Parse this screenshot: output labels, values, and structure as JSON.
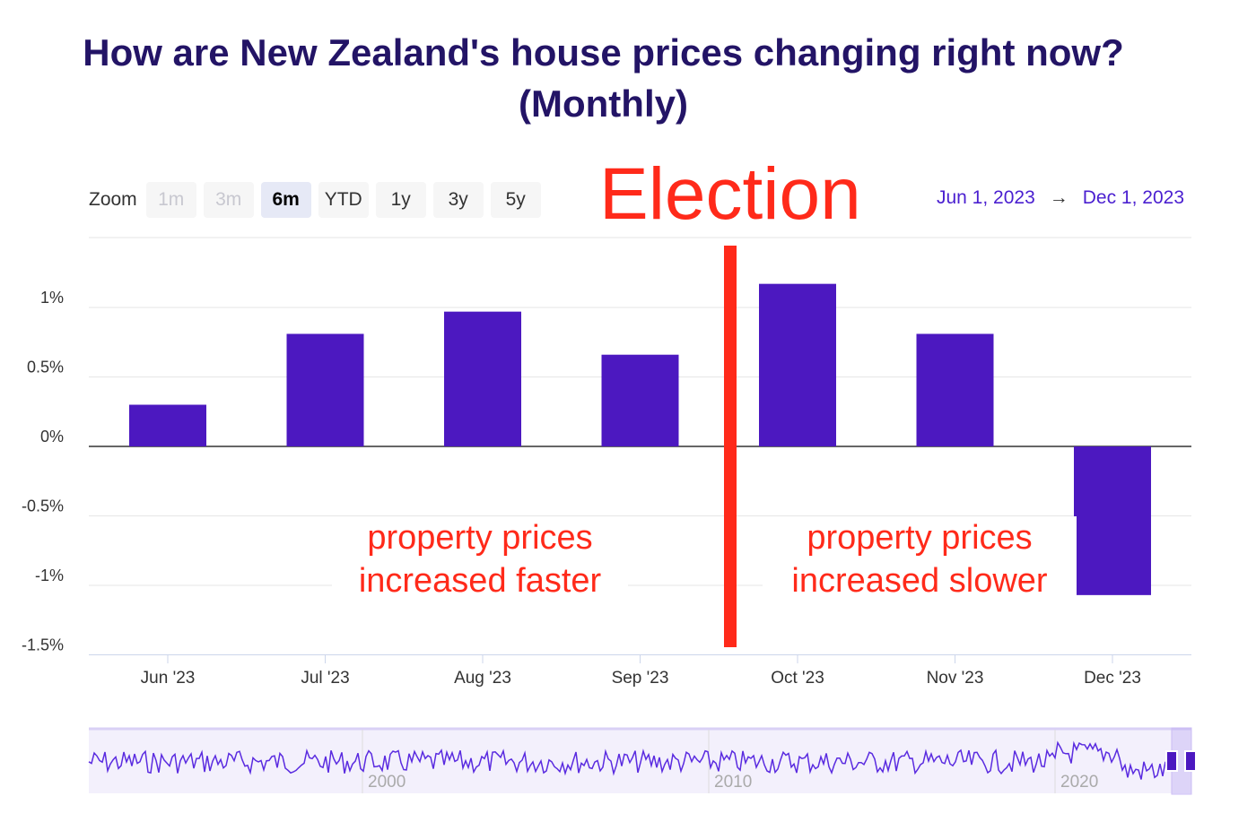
{
  "title": "How are New Zealand's house prices changing right now? (Monthly)",
  "zoom": {
    "label": "Zoom",
    "buttons": [
      {
        "label": "1m",
        "state": "disabled"
      },
      {
        "label": "3m",
        "state": "disabled"
      },
      {
        "label": "6m",
        "state": "active"
      },
      {
        "label": "YTD",
        "state": "normal"
      },
      {
        "label": "1y",
        "state": "normal"
      },
      {
        "label": "3y",
        "state": "normal"
      },
      {
        "label": "5y",
        "state": "normal"
      }
    ]
  },
  "range": {
    "from": "Jun 1, 2023",
    "arrow": "→",
    "to": "Dec 1, 2023"
  },
  "annotations": {
    "election": "Election",
    "left": "property prices increased faster",
    "right": "property prices increased slower"
  },
  "colors": {
    "bar": "#4c18c0",
    "annotation": "#ff2a1a",
    "title": "#231466",
    "range_text": "#4a1fd0"
  },
  "chart_data": {
    "type": "bar",
    "title": "How are New Zealand's house prices changing right now? (Monthly)",
    "categories": [
      "Jun '23",
      "Jul '23",
      "Aug '23",
      "Sep '23",
      "Oct '23",
      "Nov '23",
      "Dec '23"
    ],
    "values": [
      0.3,
      0.81,
      0.97,
      0.66,
      1.17,
      0.81,
      -1.07
    ],
    "unit": "%",
    "ylim": [
      -1.5,
      1.5
    ],
    "yticks": [
      {
        "value": 1,
        "label": "1%"
      },
      {
        "value": 0.5,
        "label": "0.5%"
      },
      {
        "value": 0,
        "label": "0%"
      },
      {
        "value": -0.5,
        "label": "-0.5%"
      },
      {
        "value": -1,
        "label": "-1%"
      },
      {
        "value": -1.5,
        "label": "-1.5%"
      }
    ],
    "grid": true,
    "event_marker": {
      "label": "Election",
      "between": [
        "Sep '23",
        "Oct '23"
      ]
    },
    "navigator": {
      "labels": [
        "2000",
        "2010",
        "2020"
      ]
    }
  }
}
